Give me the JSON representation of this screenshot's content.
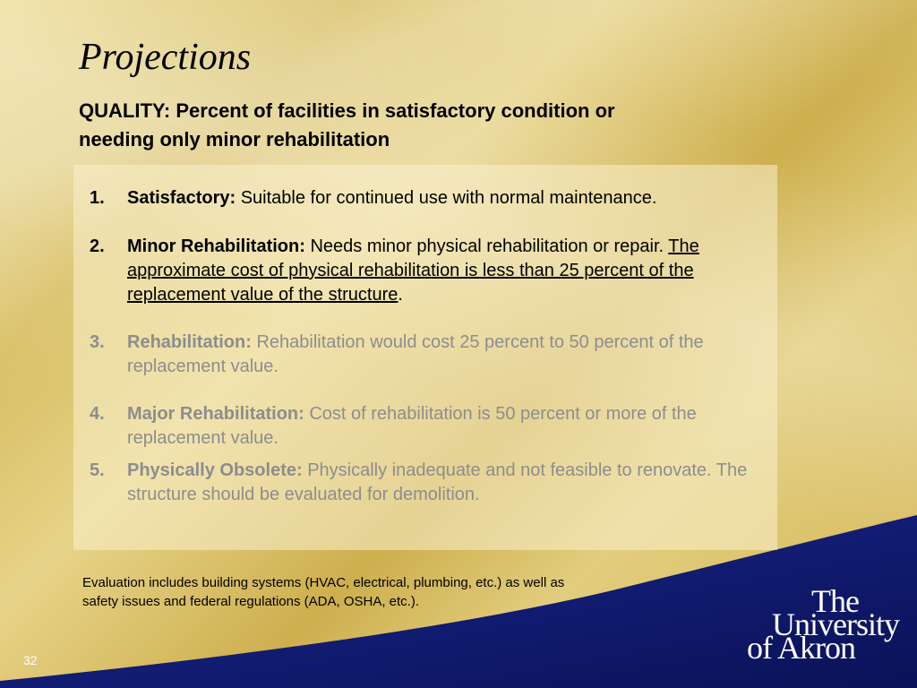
{
  "slide": {
    "title": "Projections",
    "subtitle": "QUALITY: Percent of facilities in satisfactory condition or needing only minor rehabilitation",
    "page_number": "32"
  },
  "items": [
    {
      "num": "1.",
      "term": "Satisfactory:",
      "text": " Suitable for continued use with normal maintenance."
    },
    {
      "num": "2.",
      "term": "Minor Rehabilitation:",
      "text": " Needs minor physical rehabilitation or repair.",
      "underlined": "The approximate cost of physical rehabilitation is less than 25 percent of the replacement value of the structure",
      "tail": "."
    },
    {
      "num": "3.",
      "term": "Rehabilitation:",
      "text": " Rehabilitation would cost 25 percent to 50 percent of the replacement value."
    },
    {
      "num": "4.",
      "term": "Major Rehabilitation:",
      "text": " Cost of rehabilitation is 50 percent or more of the replacement value."
    },
    {
      "num": "5.",
      "term": "Physically Obsolete:",
      "text": " Physically inadequate and not feasible to renovate. The structure should be evaluated for demolition."
    }
  ],
  "note": "Evaluation includes building systems (HVAC, electrical, plumbing, etc.) as well as safety issues and federal regulations (ADA, OSHA, etc.).",
  "logo": {
    "line1": "The",
    "line2": "University",
    "line3": "of Akron"
  },
  "colors": {
    "navy": "#101a6e",
    "dim_text": "#8d8d8d"
  }
}
